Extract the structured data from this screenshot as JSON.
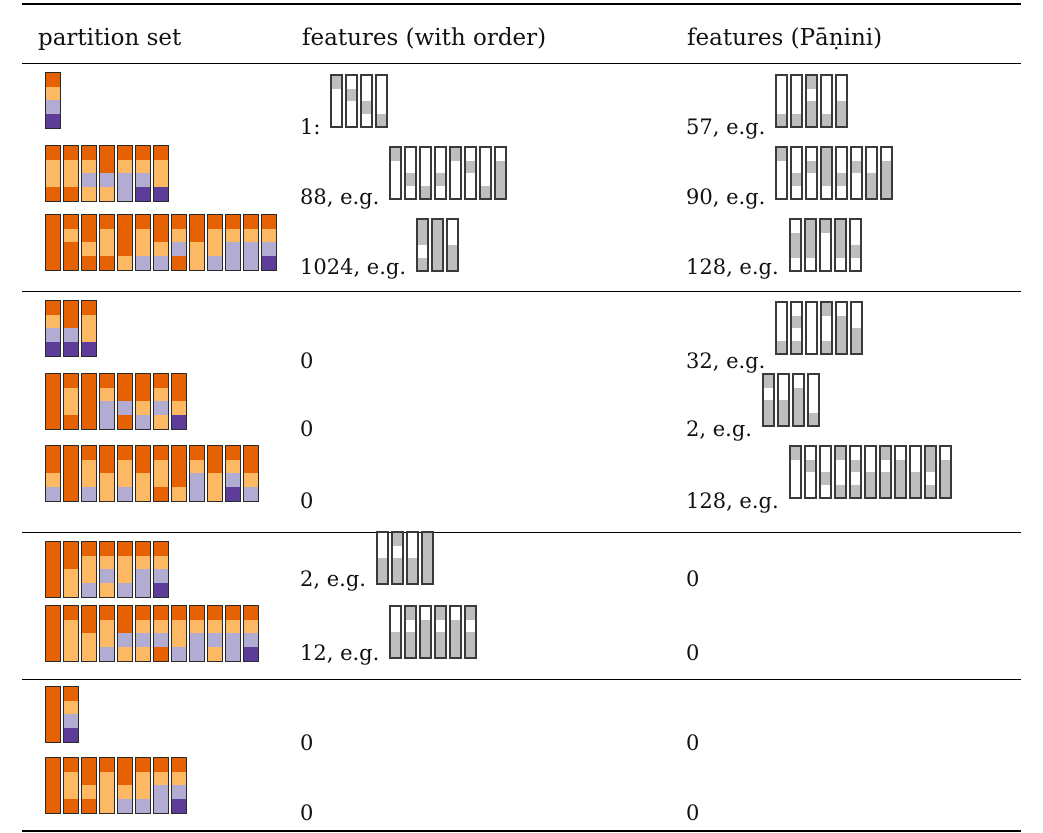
{
  "table": {
    "headers": [
      "partition set",
      "features (with order)",
      "features (Pāṇini)"
    ],
    "colors": {
      "orange_dark": "#e66101",
      "orange_light": "#fdb863",
      "purple_light": "#b2abd2",
      "purple_dark": "#5e3c99",
      "feature_on": "#bebebe",
      "feature_off": "#ffffff"
    },
    "rows": [
      {
        "group": 1,
        "partition": [
          [
            0,
            1,
            2,
            3
          ]
        ],
        "with_order": {
          "count": "1",
          "sep": ":",
          "eg": "",
          "features": [
            [
              1,
              0,
              0,
              0
            ],
            [
              0,
              1,
              0,
              0
            ],
            [
              0,
              0,
              1,
              0
            ],
            [
              0,
              0,
              0,
              1
            ]
          ]
        },
        "panini": {
          "count": "57",
          "sep": ",",
          "eg": "e.g.",
          "features": [
            [
              0,
              0,
              0,
              1
            ],
            [
              0,
              0,
              0,
              1
            ],
            [
              1,
              0,
              1,
              1
            ],
            [
              0,
              0,
              0,
              1
            ],
            [
              0,
              0,
              1,
              1
            ]
          ]
        }
      },
      {
        "group": 1,
        "partition": [
          [
            0,
            1,
            1,
            0
          ],
          [
            0,
            1,
            1,
            0
          ],
          [
            0,
            1,
            2,
            1
          ],
          [
            0,
            0,
            2,
            1
          ],
          [
            0,
            1,
            2,
            2
          ],
          [
            0,
            1,
            2,
            3
          ],
          [
            0,
            1,
            1,
            3
          ]
        ],
        "with_order": {
          "count": "88",
          "sep": ",",
          "eg": "e.g.",
          "features": [
            [
              1,
              0,
              0,
              0
            ],
            [
              0,
              0,
              1,
              0
            ],
            [
              0,
              0,
              0,
              1
            ],
            [
              0,
              0,
              1,
              0
            ],
            [
              1,
              0,
              0,
              0
            ],
            [
              0,
              1,
              0,
              0
            ],
            [
              0,
              0,
              0,
              1
            ],
            [
              0,
              1,
              1,
              1
            ]
          ]
        },
        "panini": {
          "count": "90",
          "sep": ",",
          "eg": "e.g.",
          "features": [
            [
              1,
              0,
              0,
              0
            ],
            [
              0,
              0,
              1,
              0
            ],
            [
              0,
              1,
              0,
              0
            ],
            [
              1,
              1,
              1,
              0
            ],
            [
              0,
              0,
              1,
              0
            ],
            [
              0,
              1,
              0,
              0
            ],
            [
              0,
              0,
              1,
              1
            ],
            [
              0,
              1,
              1,
              1
            ]
          ]
        }
      },
      {
        "group": 1,
        "partition": [
          [
            0,
            0,
            0,
            0
          ],
          [
            0,
            1,
            0,
            0
          ],
          [
            0,
            0,
            1,
            0
          ],
          [
            0,
            1,
            1,
            0
          ],
          [
            0,
            0,
            0,
            1
          ],
          [
            0,
            1,
            1,
            2
          ],
          [
            0,
            0,
            1,
            2
          ],
          [
            0,
            1,
            2,
            0
          ],
          [
            0,
            0,
            1,
            1
          ],
          [
            0,
            1,
            1,
            2
          ],
          [
            0,
            1,
            2,
            2
          ],
          [
            0,
            1,
            2,
            2
          ],
          [
            0,
            1,
            2,
            3
          ]
        ],
        "with_order": {
          "count": "1024",
          "sep": ",",
          "eg": "e.g.",
          "features": [
            [
              1,
              1,
              0,
              1
            ],
            [
              1,
              1,
              1,
              1
            ],
            [
              0,
              0,
              1,
              1
            ]
          ]
        },
        "panini": {
          "count": "128",
          "sep": ",",
          "eg": "e.g.",
          "features": [
            [
              0,
              1,
              1,
              0
            ],
            [
              1,
              1,
              1,
              0
            ],
            [
              1,
              0,
              0,
              0
            ],
            [
              1,
              1,
              1,
              0
            ],
            [
              0,
              0,
              1,
              0
            ]
          ]
        }
      },
      {
        "group": 2,
        "partition": [
          [
            0,
            1,
            2,
            3
          ],
          [
            0,
            0,
            2,
            3
          ],
          [
            0,
            1,
            1,
            3
          ]
        ],
        "with_order": {
          "count": "0",
          "sep": "",
          "eg": "",
          "features": []
        },
        "panini": {
          "count": "32",
          "sep": ",",
          "eg": "e.g.",
          "features": [
            [
              0,
              0,
              0,
              1
            ],
            [
              0,
              1,
              0,
              1
            ],
            [
              0,
              0,
              0,
              0
            ],
            [
              1,
              0,
              0,
              1
            ],
            [
              0,
              1,
              1,
              1
            ],
            [
              0,
              0,
              1,
              1
            ]
          ]
        }
      },
      {
        "group": 2,
        "partition": [
          [
            0,
            0,
            0,
            0
          ],
          [
            0,
            1,
            1,
            0
          ],
          [
            0,
            0,
            0,
            0
          ],
          [
            0,
            1,
            2,
            2
          ],
          [
            0,
            0,
            2,
            0
          ],
          [
            0,
            0,
            1,
            2
          ],
          [
            0,
            1,
            2,
            1
          ],
          [
            0,
            0,
            1,
            3
          ]
        ],
        "with_order": {
          "count": "0",
          "sep": "",
          "eg": "",
          "features": []
        },
        "panini": {
          "count": "2",
          "sep": ",",
          "eg": "e.g.",
          "features": [
            [
              1,
              0,
              1,
              1
            ],
            [
              0,
              0,
              1,
              1
            ],
            [
              0,
              1,
              1,
              1
            ],
            [
              0,
              0,
              0,
              1
            ]
          ]
        }
      },
      {
        "group": 2,
        "partition": [
          [
            0,
            0,
            1,
            2
          ],
          [
            0,
            0,
            0,
            0
          ],
          [
            0,
            1,
            1,
            2
          ],
          [
            0,
            0,
            1,
            1
          ],
          [
            0,
            1,
            1,
            2
          ],
          [
            0,
            0,
            1,
            1
          ],
          [
            0,
            1,
            1,
            0
          ],
          [
            0,
            0,
            0,
            1
          ],
          [
            0,
            1,
            2,
            2
          ],
          [
            0,
            0,
            1,
            1
          ],
          [
            0,
            1,
            2,
            3
          ],
          [
            0,
            0,
            1,
            2
          ]
        ],
        "with_order": {
          "count": "0",
          "sep": "",
          "eg": "",
          "features": []
        },
        "panini": {
          "count": "128",
          "sep": ",",
          "eg": "e.g.",
          "features": [
            [
              1,
              0,
              0,
              0
            ],
            [
              0,
              1,
              0,
              0
            ],
            [
              0,
              0,
              1,
              0
            ],
            [
              1,
              0,
              0,
              1
            ],
            [
              0,
              1,
              0,
              1
            ],
            [
              0,
              0,
              1,
              1
            ],
            [
              1,
              0,
              1,
              1
            ],
            [
              0,
              1,
              1,
              1
            ],
            [
              0,
              0,
              1,
              1
            ],
            [
              1,
              1,
              0,
              1
            ],
            [
              0,
              1,
              1,
              1
            ]
          ]
        }
      },
      {
        "group": 3,
        "partition": [
          [
            0,
            0,
            0,
            0
          ],
          [
            0,
            0,
            1,
            1
          ],
          [
            0,
            1,
            1,
            2
          ],
          [
            0,
            1,
            2,
            1
          ],
          [
            0,
            1,
            1,
            2
          ],
          [
            0,
            1,
            2,
            2
          ],
          [
            0,
            1,
            2,
            3
          ]
        ],
        "with_order": {
          "count": "2",
          "sep": ",",
          "eg": "e.g.",
          "features": [
            [
              0,
              0,
              1,
              1
            ],
            [
              1,
              0,
              1,
              1
            ],
            [
              0,
              0,
              1,
              1
            ],
            [
              1,
              1,
              1,
              1
            ]
          ]
        },
        "panini": {
          "count": "0",
          "sep": "",
          "eg": "",
          "features": []
        }
      },
      {
        "group": 3,
        "partition": [
          [
            0,
            0,
            0,
            0
          ],
          [
            0,
            1,
            1,
            1
          ],
          [
            0,
            0,
            1,
            1
          ],
          [
            0,
            1,
            1,
            2
          ],
          [
            0,
            0,
            2,
            1
          ],
          [
            0,
            1,
            2,
            1
          ],
          [
            0,
            1,
            2,
            0
          ],
          [
            0,
            1,
            1,
            2
          ],
          [
            0,
            1,
            2,
            2
          ],
          [
            0,
            1,
            2,
            1
          ],
          [
            0,
            1,
            2,
            2
          ],
          [
            0,
            1,
            2,
            3
          ]
        ],
        "with_order": {
          "count": "12",
          "sep": ",",
          "eg": "e.g.",
          "features": [
            [
              0,
              0,
              1,
              1
            ],
            [
              1,
              0,
              1,
              1
            ],
            [
              0,
              1,
              1,
              1
            ],
            [
              1,
              0,
              1,
              1
            ],
            [
              0,
              1,
              1,
              1
            ],
            [
              1,
              0,
              1,
              1
            ]
          ]
        },
        "panini": {
          "count": "0",
          "sep": "",
          "eg": "",
          "features": []
        }
      },
      {
        "group": 4,
        "partition": [
          [
            0,
            0,
            0,
            0
          ],
          [
            0,
            1,
            2,
            3
          ]
        ],
        "with_order": {
          "count": "0",
          "sep": "",
          "eg": "",
          "features": []
        },
        "panini": {
          "count": "0",
          "sep": "",
          "eg": "",
          "features": []
        }
      },
      {
        "group": 4,
        "partition": [
          [
            0,
            0,
            0,
            0
          ],
          [
            0,
            1,
            1,
            0
          ],
          [
            0,
            0,
            1,
            0
          ],
          [
            0,
            1,
            1,
            1
          ],
          [
            0,
            0,
            1,
            2
          ],
          [
            0,
            1,
            1,
            2
          ],
          [
            0,
            1,
            2,
            2
          ],
          [
            0,
            1,
            2,
            3
          ]
        ],
        "with_order": {
          "count": "0",
          "sep": "",
          "eg": "",
          "features": []
        },
        "panini": {
          "count": "0",
          "sep": "",
          "eg": "",
          "features": []
        }
      }
    ]
  }
}
